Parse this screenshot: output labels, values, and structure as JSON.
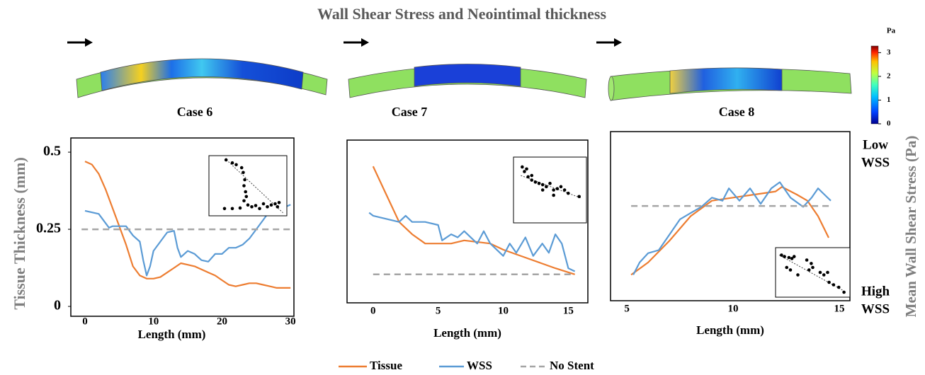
{
  "figure": {
    "title": "Wall Shear Stress and Neointimal thickness",
    "colorbar": {
      "label": "Pa",
      "lim": [
        0,
        3.28
      ],
      "ticks": [
        0,
        1,
        2,
        3
      ]
    }
  },
  "chart_data": [
    {
      "type": "line",
      "title": "Case 6",
      "xlabel": "Length (mm)",
      "ylabel": "Tissue Thickness (mm)",
      "xlim": [
        -2.07,
        30.5
      ],
      "ylim": [
        -0.032,
        0.546
      ],
      "xticks": [
        0,
        10,
        20,
        30
      ],
      "yticks": [
        0,
        0.25,
        0.5
      ],
      "series": [
        {
          "name": "Tissue",
          "color": "#ed7d31",
          "dash": false,
          "x": [
            0,
            1,
            2,
            3,
            4,
            5,
            6,
            7,
            8,
            9,
            10,
            11,
            12,
            13,
            14,
            15,
            16,
            17,
            18,
            19,
            20,
            21,
            22,
            23,
            24,
            25,
            26,
            27,
            28,
            29,
            30
          ],
          "values": [
            0.47,
            0.46,
            0.43,
            0.38,
            0.32,
            0.26,
            0.2,
            0.13,
            0.1,
            0.09,
            0.09,
            0.095,
            0.11,
            0.125,
            0.14,
            0.135,
            0.13,
            0.12,
            0.11,
            0.1,
            0.085,
            0.07,
            0.065,
            0.07,
            0.075,
            0.075,
            0.07,
            0.065,
            0.06,
            0.06,
            0.06
          ]
        },
        {
          "name": "WSS",
          "color": "#5b9bd5",
          "dash": false,
          "x": [
            0,
            2,
            3,
            3.5,
            4,
            6,
            7,
            8,
            8.5,
            9,
            9.5,
            10,
            11,
            12,
            13,
            13.5,
            14,
            15,
            16,
            17,
            18,
            19,
            20,
            21,
            22,
            23,
            24,
            25,
            26,
            27,
            28,
            29,
            30
          ],
          "values": [
            0.31,
            0.3,
            0.27,
            0.255,
            0.26,
            0.26,
            0.23,
            0.21,
            0.15,
            0.1,
            0.13,
            0.18,
            0.21,
            0.24,
            0.245,
            0.19,
            0.16,
            0.18,
            0.17,
            0.15,
            0.145,
            0.17,
            0.17,
            0.19,
            0.19,
            0.2,
            0.22,
            0.25,
            0.28,
            0.31,
            0.32,
            0.32,
            0.33
          ]
        },
        {
          "name": "No Stent",
          "color": "#a5a5a5",
          "dash": true,
          "x": [
            -0.5,
            30
          ],
          "values": [
            0.25,
            0.25
          ]
        }
      ],
      "inset": {
        "x": [
          0.22,
          0.3,
          0.35,
          0.42,
          0.44,
          0.46,
          0.45,
          0.47,
          0.48,
          0.45,
          0.5,
          0.2,
          0.3,
          0.4,
          0.55,
          0.6,
          0.7,
          0.75,
          0.8,
          0.85,
          0.9,
          0.88,
          0.65
        ],
        "y": [
          0.93,
          0.88,
          0.85,
          0.8,
          0.72,
          0.6,
          0.5,
          0.4,
          0.32,
          0.25,
          0.18,
          0.12,
          0.12,
          0.13,
          0.15,
          0.17,
          0.2,
          0.15,
          0.18,
          0.2,
          0.22,
          0.15,
          0.12
        ],
        "trend_x": [
          0.25,
          0.95
        ],
        "trend_y": [
          0.9,
          0.05
        ]
      }
    },
    {
      "type": "line",
      "title": "Case 7",
      "xlabel": "Length (mm)",
      "xlim": [
        -2.0,
        16.5
      ],
      "ylim": [
        0.008,
        0.535
      ],
      "xticks": [
        0,
        5,
        10,
        15
      ],
      "series": [
        {
          "name": "Tissue",
          "color": "#ed7d31",
          "dash": false,
          "x": [
            0,
            1,
            2,
            3,
            4,
            6,
            7,
            9,
            10,
            12,
            14,
            15.5
          ],
          "values": [
            0.45,
            0.36,
            0.27,
            0.23,
            0.2,
            0.2,
            0.21,
            0.2,
            0.18,
            0.15,
            0.12,
            0.1
          ]
        },
        {
          "name": "WSS",
          "color": "#5b9bd5",
          "dash": false,
          "x": [
            -0.3,
            0,
            1,
            2,
            2.5,
            3,
            4,
            5,
            5.3,
            6,
            6.5,
            7,
            8,
            8.5,
            9,
            10,
            10.5,
            11,
            11.7,
            12.3,
            13,
            13.5,
            14,
            14.5,
            15,
            15.5
          ],
          "values": [
            0.3,
            0.29,
            0.28,
            0.27,
            0.29,
            0.27,
            0.27,
            0.26,
            0.21,
            0.23,
            0.22,
            0.24,
            0.2,
            0.24,
            0.2,
            0.16,
            0.2,
            0.17,
            0.22,
            0.16,
            0.2,
            0.17,
            0.23,
            0.2,
            0.12,
            0.11
          ]
        },
        {
          "name": "No Stent",
          "color": "#a5a5a5",
          "dash": true,
          "x": [
            0,
            15.5
          ],
          "values": [
            0.1,
            0.1
          ]
        }
      ],
      "inset": {
        "x": [
          0.12,
          0.15,
          0.18,
          0.2,
          0.25,
          0.3,
          0.35,
          0.4,
          0.45,
          0.5,
          0.55,
          0.6,
          0.65,
          0.7,
          0.75,
          0.55,
          0.9,
          0.4,
          0.25
        ],
        "y": [
          0.85,
          0.78,
          0.82,
          0.7,
          0.65,
          0.62,
          0.6,
          0.58,
          0.55,
          0.6,
          0.5,
          0.52,
          0.55,
          0.5,
          0.45,
          0.42,
          0.4,
          0.5,
          0.72
        ],
        "trend_x": [
          0.1,
          0.92
        ],
        "trend_y": [
          0.72,
          0.38
        ]
      }
    },
    {
      "type": "line",
      "title": "Case 8",
      "xlabel": "Length (mm)",
      "y2label": "Mean Wall Shear Stress (Pa)",
      "low_label": [
        "Low",
        "WSS"
      ],
      "high_label": [
        "High",
        "WSS"
      ],
      "xlim": [
        4.23,
        15.5
      ],
      "ylim": [
        0.016,
        0.564
      ],
      "xticks": [
        5,
        10,
        15
      ],
      "series": [
        {
          "name": "Tissue",
          "color": "#ed7d31",
          "dash": false,
          "x": [
            5.2,
            6,
            7,
            8,
            9,
            10,
            11,
            12,
            12.3,
            13,
            13.5,
            14,
            14.5
          ],
          "values": [
            0.1,
            0.14,
            0.21,
            0.29,
            0.34,
            0.35,
            0.36,
            0.37,
            0.385,
            0.36,
            0.34,
            0.29,
            0.22
          ]
        },
        {
          "name": "WSS",
          "color": "#5b9bd5",
          "dash": false,
          "x": [
            5.3,
            5.6,
            6,
            6.5,
            7,
            7.5,
            8,
            8.5,
            9,
            9.5,
            9.8,
            10.3,
            10.8,
            11.3,
            11.8,
            12.2,
            12.7,
            13.3,
            13.7,
            14,
            14.3,
            14.6
          ],
          "values": [
            0.1,
            0.14,
            0.17,
            0.18,
            0.23,
            0.28,
            0.3,
            0.32,
            0.35,
            0.34,
            0.38,
            0.34,
            0.38,
            0.33,
            0.38,
            0.4,
            0.35,
            0.32,
            0.35,
            0.38,
            0.36,
            0.34
          ]
        },
        {
          "name": "No Stent",
          "color": "#a5a5a5",
          "dash": true,
          "x": [
            5.2,
            14.7
          ],
          "values": [
            0.323,
            0.323
          ]
        }
      ],
      "inset": {
        "x": [
          0.08,
          0.12,
          0.18,
          0.22,
          0.25,
          0.15,
          0.2,
          0.42,
          0.48,
          0.5,
          0.6,
          0.65,
          0.7,
          0.72,
          0.78,
          0.85,
          0.92,
          0.3,
          0.45
        ],
        "y": [
          0.85,
          0.82,
          0.8,
          0.78,
          0.82,
          0.6,
          0.55,
          0.75,
          0.68,
          0.6,
          0.5,
          0.45,
          0.5,
          0.3,
          0.25,
          0.2,
          0.1,
          0.45,
          0.55
        ],
        "trend_x": [
          0.05,
          0.95
        ],
        "trend_y": [
          0.85,
          0.1
        ]
      }
    }
  ]
}
